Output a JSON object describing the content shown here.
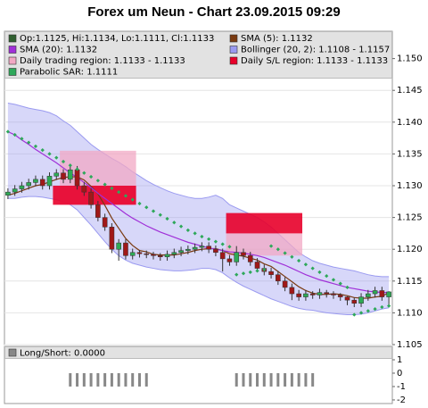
{
  "chart_data": [
    {
      "type": "candlestick",
      "title": "Forex um Neun - Chart 23.09.2015 09:29",
      "ylim": [
        1.105,
        1.1543
      ],
      "yticks": [
        {
          "value": 1.105,
          "label": "1.105"
        },
        {
          "value": 1.11,
          "label": "1.110"
        },
        {
          "value": 1.115,
          "label": "1.115"
        },
        {
          "value": 1.12,
          "label": "1.120"
        },
        {
          "value": 1.125,
          "label": "1.125"
        },
        {
          "value": 1.13,
          "label": "1.130"
        },
        {
          "value": 1.135,
          "label": "1.135"
        },
        {
          "value": 1.14,
          "label": "1.140"
        },
        {
          "value": 1.145,
          "label": "1.145"
        },
        {
          "value": 1.15,
          "label": "1.150"
        }
      ],
      "grid": true,
      "candles": {
        "name": "Op:1.1125, Hi:1.1134, Lo:1.1111, Cl:1.1133",
        "color": "#2f5f2f",
        "up_color": "#2eaa55",
        "down_color": "#a01818",
        "open": [
          1.1285,
          1.129,
          1.1295,
          1.13,
          1.1305,
          1.131,
          1.13,
          1.1315,
          1.132,
          1.131,
          1.1325,
          1.13,
          1.129,
          1.127,
          1.125,
          1.1235,
          1.12,
          1.121,
          1.119,
          1.1195,
          1.1193,
          1.1192,
          1.119,
          1.1188,
          1.1192,
          1.1195,
          1.1198,
          1.12,
          1.1203,
          1.1205,
          1.12,
          1.1195,
          1.1185,
          1.118,
          1.1195,
          1.119,
          1.118,
          1.117,
          1.1165,
          1.116,
          1.115,
          1.114,
          1.113,
          1.1125,
          1.113,
          1.1128,
          1.1132,
          1.113,
          1.1128,
          1.1125,
          1.112,
          1.1115,
          1.1125,
          1.113,
          1.1135,
          1.1125
        ],
        "high": [
          1.1296,
          1.1301,
          1.1306,
          1.1311,
          1.1316,
          1.1316,
          1.1321,
          1.1326,
          1.1326,
          1.1331,
          1.1331,
          1.1306,
          1.1296,
          1.1276,
          1.1256,
          1.1241,
          1.1216,
          1.1216,
          1.1201,
          1.1199,
          1.1198,
          1.1196,
          1.1194,
          1.1198,
          1.1201,
          1.1204,
          1.1206,
          1.1209,
          1.1211,
          1.1211,
          1.1206,
          1.1201,
          1.1191,
          1.1205,
          1.1201,
          1.1196,
          1.1186,
          1.1176,
          1.1171,
          1.1166,
          1.1156,
          1.1146,
          1.1136,
          1.1136,
          1.1134,
          1.1138,
          1.1136,
          1.1134,
          1.1131,
          1.1126,
          1.1124,
          1.1131,
          1.1136,
          1.1141,
          1.1141,
          1.1134
        ],
        "low": [
          1.1279,
          1.1284,
          1.1289,
          1.1294,
          1.1299,
          1.1294,
          1.1294,
          1.1309,
          1.1304,
          1.1304,
          1.1294,
          1.1284,
          1.1264,
          1.1244,
          1.1229,
          1.1194,
          1.1182,
          1.1184,
          1.1184,
          1.1187,
          1.1186,
          1.1184,
          1.1182,
          1.1182,
          1.1186,
          1.1189,
          1.1192,
          1.1194,
          1.1197,
          1.1194,
          1.1189,
          1.1165,
          1.1174,
          1.1174,
          1.1184,
          1.1174,
          1.1164,
          1.1159,
          1.1154,
          1.1144,
          1.1134,
          1.112,
          1.1119,
          1.1119,
          1.1122,
          1.1122,
          1.1124,
          1.1122,
          1.1119,
          1.1112,
          1.1109,
          1.1109,
          1.1119,
          1.1124,
          1.1119,
          1.1111
        ],
        "close": [
          1.129,
          1.1295,
          1.13,
          1.1305,
          1.131,
          1.13,
          1.1315,
          1.132,
          1.131,
          1.1325,
          1.13,
          1.129,
          1.127,
          1.125,
          1.1235,
          1.12,
          1.121,
          1.119,
          1.1195,
          1.1193,
          1.1192,
          1.119,
          1.1188,
          1.1192,
          1.1195,
          1.1198,
          1.12,
          1.1203,
          1.1205,
          1.12,
          1.1195,
          1.1185,
          1.118,
          1.1195,
          1.119,
          1.118,
          1.117,
          1.1165,
          1.116,
          1.115,
          1.114,
          1.113,
          1.1125,
          1.113,
          1.1128,
          1.1132,
          1.113,
          1.1128,
          1.1125,
          1.112,
          1.1115,
          1.1125,
          1.113,
          1.1135,
          1.1125,
          1.1133
        ]
      },
      "series": [
        {
          "name": "SMA (5): 1.1132",
          "color": "#7a3a10",
          "values": [
            1.1285,
            1.1288,
            1.1292,
            1.1296,
            1.13,
            1.1302,
            1.1306,
            1.131,
            1.1313,
            1.1314,
            1.1314,
            1.1309,
            1.1299,
            1.1287,
            1.1269,
            1.1249,
            1.1233,
            1.1217,
            1.1206,
            1.1198,
            1.1196,
            1.1192,
            1.1191,
            1.1191,
            1.1191,
            1.1193,
            1.1195,
            1.1198,
            1.12,
            1.1201,
            1.1201,
            1.1198,
            1.1193,
            1.1191,
            1.1189,
            1.1186,
            1.1183,
            1.1177,
            1.1173,
            1.1165,
            1.1157,
            1.1149,
            1.1141,
            1.1135,
            1.1131,
            1.1129,
            1.1129,
            1.113,
            1.1129,
            1.1127,
            1.1124,
            1.1123,
            1.1123,
            1.1125,
            1.1126,
            1.1132
          ]
        },
        {
          "name": "SMA (20): 1.1132",
          "color": "#a030d8",
          "values": [
            1.1385,
            1.138,
            1.1372,
            1.1365,
            1.1357,
            1.135,
            1.1343,
            1.1336,
            1.1328,
            1.132,
            1.1313,
            1.1305,
            1.1297,
            1.1288,
            1.128,
            1.1272,
            1.1264,
            1.1256,
            1.1249,
            1.1243,
            1.1237,
            1.1232,
            1.1227,
            1.1223,
            1.1219,
            1.1215,
            1.1211,
            1.1208,
            1.1205,
            1.1202,
            1.12,
            1.1198,
            1.1196,
            1.1195,
            1.1194,
            1.1192,
            1.119,
            1.1187,
            1.1183,
            1.1179,
            1.1175,
            1.117,
            1.1165,
            1.116,
            1.1156,
            1.1152,
            1.1149,
            1.1146,
            1.1143,
            1.114,
            1.1138,
            1.1136,
            1.1134,
            1.1133,
            1.1132,
            1.1132
          ]
        }
      ],
      "bands": [
        {
          "name": "Bollinger (20, 2): 1.1108 - 1.1157",
          "color": "#9a9af0",
          "upper": [
            1.143,
            1.1428,
            1.1425,
            1.1422,
            1.142,
            1.1418,
            1.1415,
            1.141,
            1.1402,
            1.1395,
            1.1385,
            1.1375,
            1.1365,
            1.1357,
            1.135,
            1.1343,
            1.1337,
            1.133,
            1.1322,
            1.1315,
            1.1308,
            1.1302,
            1.1297,
            1.1292,
            1.1288,
            1.1285,
            1.1282,
            1.128,
            1.128,
            1.1282,
            1.1285,
            1.128,
            1.127,
            1.1265,
            1.126,
            1.1255,
            1.125,
            1.1243,
            1.1235,
            1.1225,
            1.1215,
            1.1205,
            1.1195,
            1.1188,
            1.1182,
            1.1178,
            1.1175,
            1.1172,
            1.117,
            1.1168,
            1.1166,
            1.1163,
            1.116,
            1.1158,
            1.1157,
            1.1157
          ],
          "lower": [
            1.128,
            1.128,
            1.1282,
            1.1283,
            1.1283,
            1.1282,
            1.128,
            1.1278,
            1.1275,
            1.127,
            1.1262,
            1.125,
            1.1238,
            1.1225,
            1.1212,
            1.12,
            1.119,
            1.1183,
            1.1178,
            1.1175,
            1.1172,
            1.117,
            1.1168,
            1.1167,
            1.1166,
            1.1166,
            1.1167,
            1.1168,
            1.117,
            1.117,
            1.1168,
            1.1163,
            1.1155,
            1.1148,
            1.1142,
            1.1137,
            1.1132,
            1.1127,
            1.1122,
            1.1118,
            1.1114,
            1.111,
            1.1107,
            1.1105,
            1.1104,
            1.1102,
            1.11,
            1.1099,
            1.1098,
            1.1097,
            1.1097,
            1.1098,
            1.11,
            1.1103,
            1.1106,
            1.1108
          ]
        }
      ],
      "regions": [
        {
          "name": "Daily trading region: 1.1133 - 1.1133",
          "color": "#f2a8c4",
          "areas": [
            {
              "start": 8,
              "end": 19,
              "low": 1.127,
              "high": 1.1355
            },
            {
              "start": 32,
              "end": 43,
              "low": 1.119,
              "high": 1.1225
            }
          ]
        },
        {
          "name": "Daily S/L region: 1.1133 - 1.1133",
          "color": "#e8002a",
          "areas": [
            {
              "start": 7,
              "end": 19,
              "low": 1.127,
              "high": 1.13
            },
            {
              "start": 32,
              "end": 43,
              "low": 1.1225,
              "high": 1.1257
            }
          ]
        }
      ],
      "sar": {
        "name": "Parabolic SAR: 1.1111",
        "color": "#2ea85a",
        "values": [
          1.1385,
          1.138,
          1.1374,
          1.1368,
          1.1362,
          1.1356,
          1.135,
          1.1344,
          1.1338,
          1.1332,
          1.1326,
          1.132,
          1.1314,
          1.1308,
          1.1302,
          1.1296,
          1.129,
          1.1284,
          1.1278,
          1.1272,
          1.1266,
          1.126,
          1.1254,
          1.1248,
          1.1242,
          1.1236,
          1.123,
          1.1225,
          1.122,
          1.1216,
          1.1212,
          1.1208,
          1.1204,
          1.116,
          1.1162,
          1.1164,
          1.1166,
          1.1168,
          1.1205,
          1.12,
          1.1194,
          1.1188,
          1.1182,
          1.1176,
          1.117,
          1.1164,
          1.1158,
          1.1152,
          1.1146,
          1.114,
          1.1097,
          1.11,
          1.1103,
          1.1106,
          1.1109,
          1.1111
        ]
      }
    },
    {
      "type": "bar",
      "ylim": [
        -2.27,
        2
      ],
      "yticks": [
        -2,
        -1,
        0,
        1
      ],
      "series": [
        {
          "name": "Long/Short: 0.0000",
          "color": "#888888",
          "values": [
            0,
            0,
            0,
            0,
            0,
            0,
            0,
            0,
            0,
            -1,
            -1,
            -1,
            -1,
            -1,
            -1,
            -1,
            -1,
            -1,
            -1,
            -1,
            -1,
            0,
            0,
            0,
            0,
            0,
            0,
            0,
            0,
            0,
            0,
            0,
            0,
            -1,
            -1,
            -1,
            -1,
            -1,
            -1,
            -1,
            -1,
            -1,
            -1,
            -1,
            -1,
            0,
            0,
            0,
            0,
            0,
            0,
            0,
            0,
            0,
            0,
            0
          ]
        }
      ]
    }
  ]
}
